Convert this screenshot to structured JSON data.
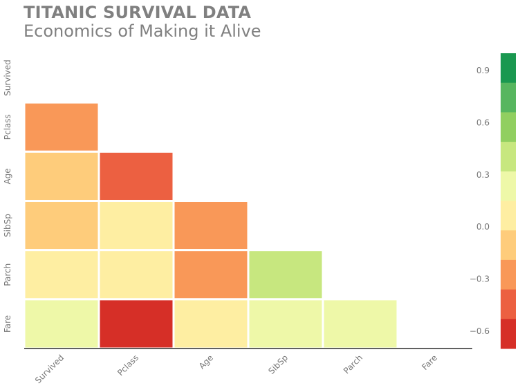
{
  "header": {
    "title": "TITANIC SURVIVAL DATA",
    "subtitle": "Economics of Making it Alive"
  },
  "chart_data": {
    "type": "heatmap",
    "variables": [
      "Survived",
      "Pclass",
      "Age",
      "SibSp",
      "Parch",
      "Fare"
    ],
    "mask": "upper-triangle-including-diagonal",
    "values": [
      [
        null,
        null,
        null,
        null,
        null,
        null
      ],
      [
        -0.34,
        null,
        null,
        null,
        null,
        null
      ],
      [
        -0.08,
        -0.37,
        null,
        null,
        null,
        null
      ],
      [
        -0.04,
        0.08,
        -0.31,
        null,
        null,
        null
      ],
      [
        0.08,
        0.02,
        -0.19,
        0.41,
        null,
        null
      ],
      [
        0.26,
        -0.55,
        0.1,
        0.16,
        0.22,
        null
      ]
    ],
    "colorbar": {
      "ticks": [
        0.9,
        0.6,
        0.3,
        0.0,
        -0.3,
        -0.6
      ],
      "tick_labels": [
        "0.9",
        "0.6",
        "0.3",
        "0.0",
        "−0.3",
        "−0.6"
      ],
      "range": [
        -0.7,
        1.0
      ],
      "colors": [
        "#1a9850",
        "#57b65f",
        "#91cf60",
        "#c7e77f",
        "#eef8a8",
        "#feeea2",
        "#fecc7b",
        "#f99858",
        "#ec6041",
        "#d62f27"
      ]
    }
  }
}
